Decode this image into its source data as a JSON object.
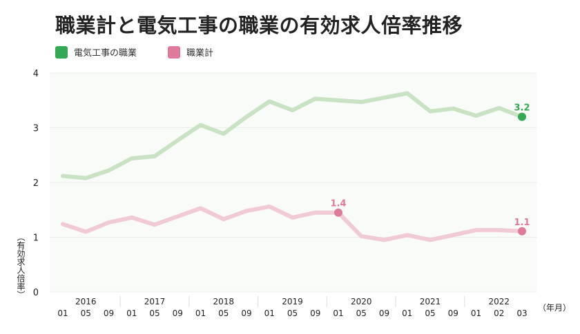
{
  "title": "職業計と電気工事の職業の有効求人倍率推移",
  "legend": [
    {
      "label": "電気工事の職業",
      "color": "#34a853"
    },
    {
      "label": "職業計",
      "color": "#e07a9a"
    }
  ],
  "y_axis_label": "（有効求人倍率）",
  "x_axis_unit": "（年月）",
  "chart_data": {
    "type": "line",
    "title": "職業計と電気工事の職業の有効求人倍率推移",
    "ylabel": "（有効求人倍率）",
    "xlabel": "（年月）",
    "ylim": [
      0,
      4
    ],
    "yticks": [
      0,
      1,
      2,
      3,
      4
    ],
    "grid": true,
    "legend_position": "top-left",
    "years": [
      {
        "label": "2016",
        "at": 1
      },
      {
        "label": "2017",
        "at": 4
      },
      {
        "label": "2018",
        "at": 7
      },
      {
        "label": "2019",
        "at": 10
      },
      {
        "label": "2020",
        "at": 13
      },
      {
        "label": "2021",
        "at": 16
      },
      {
        "label": "2022",
        "at": 19
      }
    ],
    "months": [
      "01",
      "05",
      "09",
      "01",
      "05",
      "09",
      "01",
      "05",
      "09",
      "01",
      "05",
      "09",
      "01",
      "05",
      "09",
      "01",
      "05",
      "09",
      "01",
      "02",
      "03"
    ],
    "series": [
      {
        "name": "電気工事の職業",
        "line_color": "#c9e2c4",
        "marker_color": "#34a853",
        "values": [
          2.12,
          2.08,
          2.22,
          2.44,
          2.48,
          2.77,
          3.05,
          2.89,
          3.2,
          3.48,
          3.32,
          3.53,
          3.5,
          3.47,
          3.55,
          3.63,
          3.3,
          3.35,
          3.22,
          3.36,
          3.2
        ],
        "annotations": [
          {
            "index": 20,
            "label": "3.2"
          }
        ]
      },
      {
        "name": "職業計",
        "line_color": "#f0cad5",
        "marker_color": "#e07a9a",
        "values": [
          1.24,
          1.1,
          1.27,
          1.36,
          1.23,
          1.38,
          1.53,
          1.33,
          1.48,
          1.56,
          1.36,
          1.45,
          1.45,
          1.02,
          0.95,
          1.04,
          0.95,
          1.04,
          1.13,
          1.13,
          1.11
        ],
        "annotations": [
          {
            "index": 12,
            "label": "1.4"
          },
          {
            "index": 20,
            "label": "1.1"
          }
        ]
      }
    ]
  }
}
